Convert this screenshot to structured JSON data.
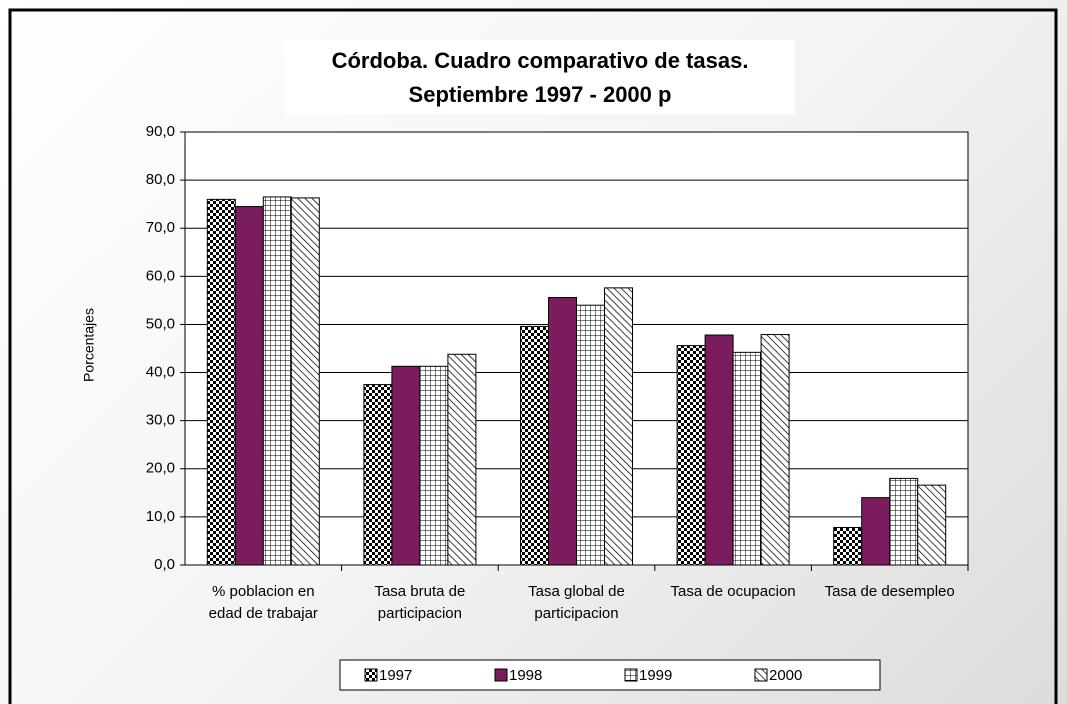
{
  "chart_data": {
    "type": "bar",
    "title": [
      "Córdoba. Cuadro comparativo de tasas.",
      "Septiembre 1997 - 2000 p"
    ],
    "y_label": "Porcentajes",
    "categories": [
      "% poblacion en edad de trabajar",
      "Tasa bruta de participacion",
      "Tasa global de participacion",
      "Tasa de ocupacion",
      "Tasa de desempleo"
    ],
    "series": [
      {
        "name": "1997",
        "color": "#000000",
        "pattern": "checker",
        "values": [
          76.0,
          37.5,
          49.6,
          45.6,
          7.8
        ]
      },
      {
        "name": "1998",
        "color": "#7b1c5e",
        "pattern": "solid",
        "values": [
          74.5,
          41.3,
          55.6,
          47.8,
          14.0
        ]
      },
      {
        "name": "1999",
        "color": "#000000",
        "pattern": "grid",
        "values": [
          76.5,
          41.3,
          54.0,
          44.2,
          18.0
        ]
      },
      {
        "name": "2000",
        "color": "#000000",
        "pattern": "diagonal",
        "values": [
          76.3,
          43.8,
          57.6,
          47.9,
          16.6
        ]
      }
    ],
    "ylim": [
      0,
      90
    ],
    "yticks": [
      {
        "value": 0,
        "label": "0,0"
      },
      {
        "value": 10,
        "label": "10,0"
      },
      {
        "value": 20,
        "label": "20,0"
      },
      {
        "value": 30,
        "label": "30,0"
      },
      {
        "value": 40,
        "label": "40,0"
      },
      {
        "value": 50,
        "label": "50,0"
      },
      {
        "value": 60,
        "label": "60,0"
      },
      {
        "value": 70,
        "label": "70,0"
      },
      {
        "value": 80,
        "label": "80,0"
      },
      {
        "value": 90,
        "label": "90,0"
      }
    ],
    "grid": true,
    "legend": "bottom"
  }
}
